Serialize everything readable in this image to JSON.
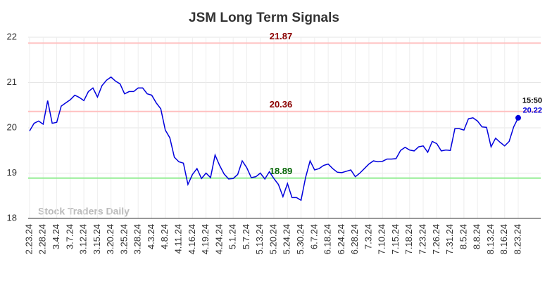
{
  "chart_data": {
    "type": "line",
    "title": "JSM Long Term Signals",
    "categories": [
      "2.23.24",
      null,
      null,
      "2.28.24",
      null,
      null,
      "3.4.24",
      null,
      null,
      "3.7.24",
      null,
      null,
      "3.12.24",
      null,
      null,
      "3.15.24",
      null,
      null,
      "3.20.24",
      null,
      null,
      "3.25.24",
      null,
      null,
      "3.28.24",
      null,
      null,
      "4.3.24",
      null,
      null,
      "4.8.24",
      null,
      null,
      "4.11.24",
      null,
      null,
      "4.16.24",
      null,
      null,
      "4.19.24",
      null,
      null,
      "4.24.24",
      null,
      null,
      "5.1.24",
      null,
      null,
      "5.7.24",
      null,
      null,
      "5.13.24",
      null,
      null,
      "5.20.24",
      null,
      null,
      "5.24.24",
      null,
      null,
      "5.30.24",
      null,
      null,
      "6.7.24",
      null,
      null,
      "6.18.24",
      null,
      null,
      "6.24.24",
      null,
      null,
      "6.28.24",
      null,
      null,
      "7.3.24",
      null,
      null,
      "7.10.24",
      null,
      null,
      "7.15.24",
      null,
      null,
      "7.18.24",
      null,
      null,
      "7.23.24",
      null,
      null,
      "7.26.24",
      null,
      null,
      "7.31.24",
      null,
      null,
      "8.5.24",
      null,
      null,
      "8.8.24",
      null,
      null,
      "8.13.24",
      null,
      null,
      "8.16.24",
      null,
      null,
      "8.23.24"
    ],
    "series": [
      {
        "color": "#0000dd",
        "values": [
          19.93,
          20.1,
          20.15,
          20.08,
          20.6,
          20.1,
          20.12,
          20.48,
          20.55,
          20.62,
          20.72,
          20.67,
          20.6,
          20.8,
          20.88,
          20.68,
          20.93,
          21.05,
          21.12,
          21.03,
          20.97,
          20.75,
          20.8,
          20.8,
          20.88,
          20.88,
          20.75,
          20.72,
          20.55,
          20.42,
          19.95,
          19.78,
          19.35,
          19.25,
          19.22,
          18.75,
          18.97,
          19.1,
          18.88,
          19.0,
          18.9,
          19.4,
          19.17,
          18.98,
          18.87,
          18.88,
          18.97,
          19.27,
          19.12,
          18.9,
          18.92,
          19.0,
          18.87,
          19.03,
          18.88,
          18.75,
          18.48,
          18.77,
          18.46,
          18.46,
          18.4,
          18.9,
          19.27,
          19.07,
          19.1,
          19.17,
          19.2,
          19.1,
          19.02,
          19.01,
          19.04,
          19.07,
          18.92,
          19.0,
          19.1,
          19.2,
          19.27,
          19.25,
          19.26,
          19.31,
          19.31,
          19.32,
          19.5,
          19.57,
          19.51,
          19.49,
          19.58,
          19.6,
          19.46,
          19.7,
          19.65,
          19.49,
          19.51,
          19.5,
          19.98,
          19.98,
          19.95,
          20.2,
          20.22,
          20.15,
          20.02,
          20.01,
          19.58,
          19.77,
          19.68,
          19.6,
          19.7,
          20.02,
          20.22
        ]
      }
    ],
    "last_time": "15:50",
    "hlines": [
      {
        "value": 21.87,
        "color": "#ffc0c0",
        "label_color": "#8b0000"
      },
      {
        "value": 20.36,
        "color": "#ffc0c0",
        "label_color": "#8b0000"
      },
      {
        "value": 18.89,
        "color": "#90ee90",
        "label_color": "#006400"
      }
    ],
    "watermark": "Stock Traders Daily",
    "ylim": [
      18,
      22
    ],
    "yticks": [
      18,
      19,
      20,
      21,
      22
    ],
    "grid": true
  }
}
